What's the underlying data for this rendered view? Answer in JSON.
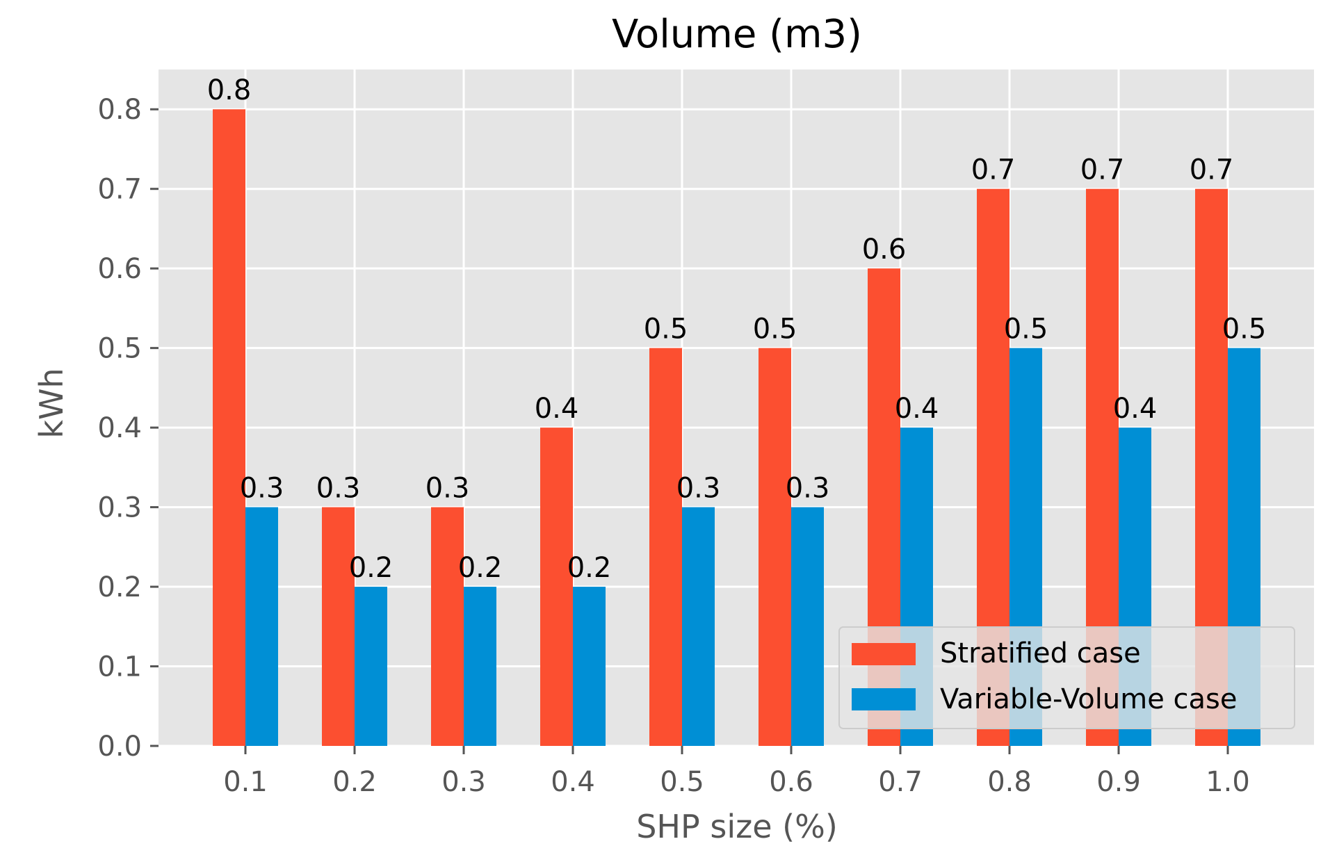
{
  "chart_data": {
    "type": "bar",
    "title": "Volume (m3)",
    "xlabel": "SHP size (%)",
    "ylabel": "kWh",
    "ylim": [
      0,
      0.85
    ],
    "grid": true,
    "legend_position": "lower-right",
    "categories": [
      "0.1",
      "0.2",
      "0.3",
      "0.4",
      "0.5",
      "0.6",
      "0.7",
      "0.8",
      "0.9",
      "1.0"
    ],
    "yticks": [
      "0.0",
      "0.1",
      "0.2",
      "0.3",
      "0.4",
      "0.5",
      "0.6",
      "0.7",
      "0.8"
    ],
    "series": [
      {
        "name": "Stratified case",
        "color": "#FC4F30",
        "values": [
          0.8,
          0.3,
          0.3,
          0.4,
          0.5,
          0.5,
          0.6,
          0.7,
          0.7,
          0.7
        ],
        "labels": [
          "0.8",
          "0.3",
          "0.3",
          "0.4",
          "0.5",
          "0.5",
          "0.6",
          "0.7",
          "0.7",
          "0.7"
        ]
      },
      {
        "name": "Variable-Volume case",
        "color": "#008FD5",
        "values": [
          0.3,
          0.2,
          0.2,
          0.2,
          0.3,
          0.3,
          0.4,
          0.5,
          0.4,
          0.5
        ],
        "labels": [
          "0.3",
          "0.2",
          "0.2",
          "0.2",
          "0.3",
          "0.3",
          "0.4",
          "0.5",
          "0.4",
          "0.5"
        ]
      }
    ],
    "colors": {
      "plot_background": "#E5E5E5",
      "grid": "#FFFFFF",
      "axis_text": "#555555",
      "label_text": "#000000"
    }
  }
}
